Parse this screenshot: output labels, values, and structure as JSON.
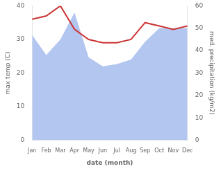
{
  "chart_data": {
    "type": "line",
    "categories": [
      "Jan",
      "Feb",
      "Mar",
      "Apr",
      "May",
      "Jun",
      "Jul",
      "Aug",
      "Sep",
      "Oct",
      "Nov",
      "Dec"
    ],
    "xlabel": "date (month)",
    "ylabel": "max temp (C)",
    "y2label": "med. precipitation (kg/m2)",
    "series": [
      {
        "type": "line",
        "color": "#cc3333",
        "values": [
          36,
          37,
          40,
          33,
          30,
          29,
          29,
          30,
          35,
          34,
          33,
          34
        ]
      },
      {
        "type": "area",
        "color": "#b3c6f0",
        "axis": "y2",
        "values": [
          47,
          38,
          45,
          57,
          37,
          33,
          34,
          36,
          44,
          50,
          50,
          50
        ]
      }
    ],
    "ylim": [
      0,
      40
    ],
    "yticks": [
      0,
      10,
      20,
      30,
      40
    ],
    "y2lim": [
      0,
      60
    ],
    "y2ticks": [
      0,
      10,
      20,
      30,
      40,
      50,
      60
    ],
    "grid": false
  }
}
